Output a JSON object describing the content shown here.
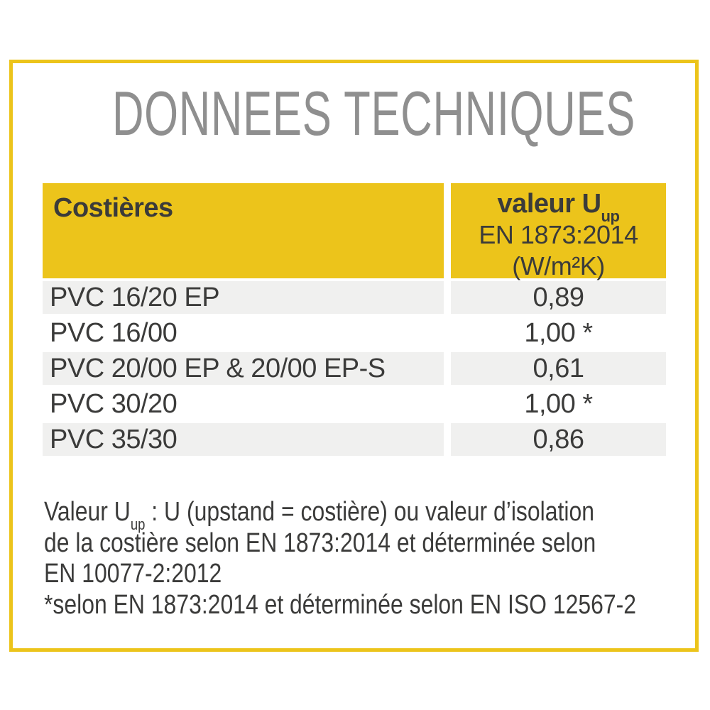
{
  "page": {
    "title": "DONNEES TECHNIQUES"
  },
  "table": {
    "header": {
      "col1": "Costières",
      "col2_line1_prefix": "valeur U",
      "col2_line1_sub": "up",
      "col2_line2": "EN 1873:2014",
      "col2_line3": "(W/m²K)"
    },
    "rows": [
      {
        "label": "PVC 16/20 EP",
        "value": "0,89"
      },
      {
        "label": "PVC 16/00",
        "value": "1,00 *"
      },
      {
        "label": "PVC 20/00 EP & 20/00 EP-S",
        "value": "0,61"
      },
      {
        "label": "PVC 30/20",
        "value": "1,00 *"
      },
      {
        "label": "PVC 35/30",
        "value": "0,86"
      }
    ]
  },
  "footnotes": {
    "line1_prefix": "Valeur U",
    "line1_sub": "up",
    "line1_rest": " : U (upstand = costière) ou valeur d’isolation",
    "line2": "de la costière selon EN 1873:2014 et déterminée selon",
    "line3": "EN 10077-2:2012",
    "line4": "*selon EN 1873:2014 et déterminée selon EN ISO 12567-2"
  },
  "colors": {
    "accent_yellow": "#ECC41B",
    "row_gray": "#F0F0EF",
    "title_gray": "#8F8F8F",
    "text_dark": "#3B3B3A"
  }
}
